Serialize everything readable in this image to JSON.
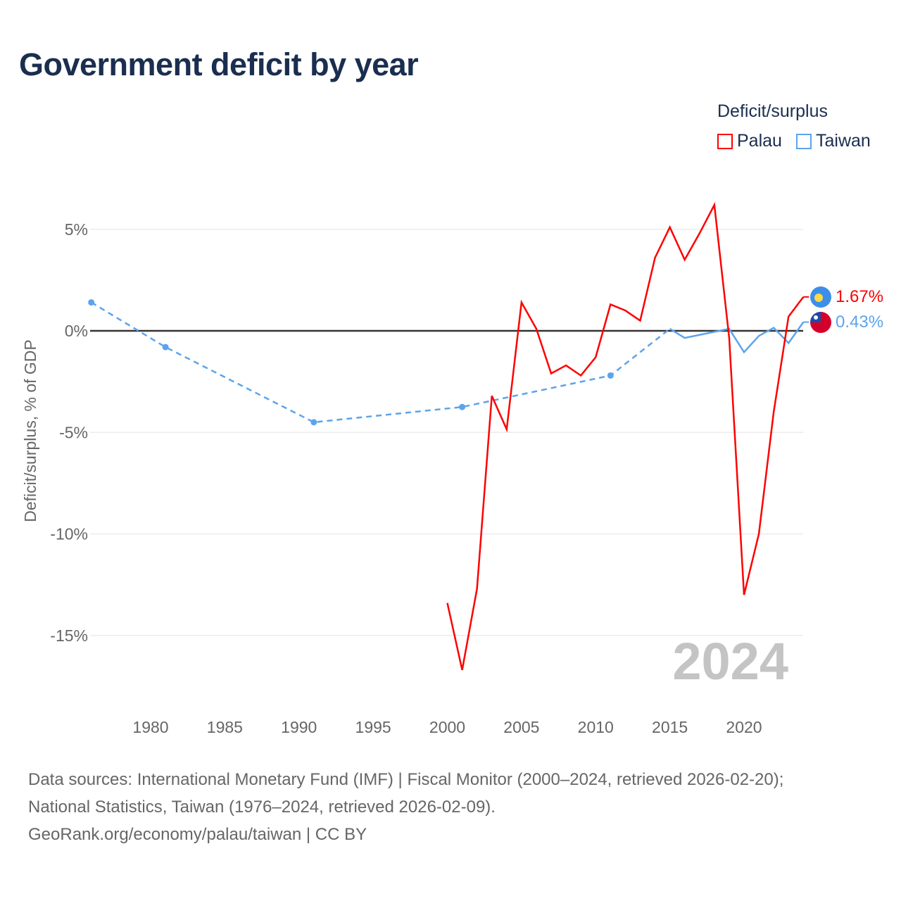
{
  "chart_data": {
    "type": "line",
    "title": "Government deficit by year",
    "ylabel": "Deficit/surplus, % of GDP",
    "xlabel": "",
    "ylim": [
      -18,
      7.5
    ],
    "xlim": [
      1975.5,
      2024.2
    ],
    "yticks": [
      5,
      0,
      -5,
      -10,
      -15
    ],
    "ytick_labels": [
      "5%",
      "0%",
      "-5%",
      "-10%",
      "-15%"
    ],
    "xticks": [
      1980,
      1985,
      1990,
      1995,
      2000,
      2005,
      2010,
      2015,
      2020
    ],
    "xtick_labels": [
      "1980",
      "1985",
      "1990",
      "1995",
      "2000",
      "2005",
      "2010",
      "2015",
      "2020"
    ],
    "legend": {
      "title": "Deficit/surplus",
      "placement": "top-right"
    },
    "year_watermark": "2024",
    "series": [
      {
        "name": "Palau",
        "color": "#ff0000",
        "end_label": "1.67%",
        "x": [
          2000,
          2001,
          2002,
          2003,
          2004,
          2005,
          2006,
          2007,
          2008,
          2009,
          2010,
          2011,
          2012,
          2013,
          2014,
          2015,
          2016,
          2017,
          2018,
          2019,
          2020,
          2021,
          2022,
          2023,
          2024
        ],
        "y": [
          -13.4,
          -16.7,
          -12.7,
          -3.2,
          -4.85,
          1.4,
          0.1,
          -2.1,
          -1.7,
          -2.2,
          -1.3,
          1.3,
          1.0,
          0.5,
          3.6,
          5.1,
          3.5,
          4.8,
          6.2,
          -0.35,
          -13.0,
          -10.0,
          -4.0,
          0.7,
          1.67
        ]
      },
      {
        "name": "Taiwan",
        "color": "#5ba4ec",
        "end_label": "0.43%",
        "sparse_x": [
          1976,
          1981,
          1991,
          2001,
          2011,
          2015
        ],
        "sparse_y": [
          1.4,
          -0.8,
          -4.5,
          -3.75,
          -2.2,
          0.1
        ],
        "x": [
          2015,
          2016,
          2017,
          2018,
          2019,
          2020,
          2021,
          2022,
          2023,
          2024
        ],
        "y": [
          0.1,
          -0.35,
          -0.2,
          -0.05,
          0.1,
          -1.05,
          -0.25,
          0.15,
          -0.6,
          0.43
        ]
      }
    ]
  },
  "footer": {
    "line1": "Data sources: International Monetary Fund (IMF) | Fiscal Monitor (2000–2024, retrieved 2026-02-20);",
    "line2": "National Statistics, Taiwan (1976–2024, retrieved 2026-02-09).",
    "line3": "GeoRank.org/economy/palau/taiwan | CC BY"
  }
}
